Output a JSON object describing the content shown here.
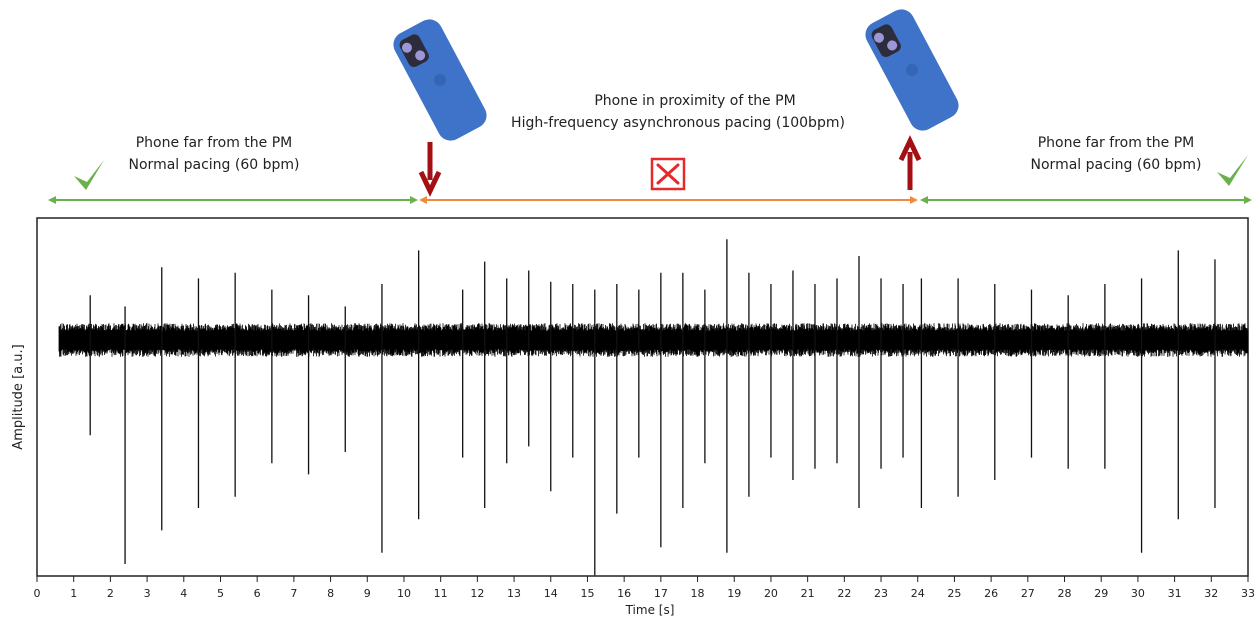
{
  "annotations": {
    "left": {
      "line1": "Phone far from the PM",
      "line2": "Normal pacing (60 bpm)"
    },
    "middle": {
      "line1": "Phone in proximity of the PM",
      "line2": "High-frequency asynchronous pacing  (100bpm)"
    },
    "right": {
      "line1": "Phone far from the PM",
      "line2": "Normal pacing (60 bpm)"
    }
  },
  "colors": {
    "normal_segment": "#6ab04c",
    "interference_segment": "#f08a3c",
    "arrow": "#a30f12",
    "cross": "#e8292b",
    "check": "#6ab04c",
    "phone": "#3f73c9",
    "signal": "#000000"
  },
  "icons": [
    "check-icon",
    "cross-icon",
    "phone-icon",
    "arrow-down-icon",
    "arrow-up-icon"
  ],
  "chart_data": {
    "type": "line",
    "xlabel": "Time [s]",
    "ylabel": "Amplitude [a.u.]",
    "xlim": [
      0,
      33
    ],
    "x_ticks": [
      0,
      1,
      2,
      3,
      4,
      5,
      6,
      7,
      8,
      9,
      10,
      11,
      12,
      13,
      14,
      15,
      16,
      17,
      18,
      19,
      20,
      21,
      22,
      23,
      24,
      25,
      26,
      27,
      28,
      29,
      30,
      31,
      32,
      33
    ],
    "signal_start": 0.6,
    "signal_end": 33,
    "noise_band": [
      -0.15,
      0.15
    ],
    "phase_boundaries": [
      10.4,
      24.0
    ],
    "spikes": [
      {
        "t": 1.45,
        "up": 0.4,
        "down": -0.85
      },
      {
        "t": 2.4,
        "up": 0.3,
        "down": -2.0
      },
      {
        "t": 3.4,
        "up": 0.65,
        "down": -1.7
      },
      {
        "t": 4.4,
        "up": 0.55,
        "down": -1.5
      },
      {
        "t": 5.4,
        "up": 0.6,
        "down": -1.4
      },
      {
        "t": 6.4,
        "up": 0.45,
        "down": -1.1
      },
      {
        "t": 7.4,
        "up": 0.4,
        "down": -1.2
      },
      {
        "t": 8.4,
        "up": 0.3,
        "down": -1.0
      },
      {
        "t": 9.4,
        "up": 0.5,
        "down": -1.9
      },
      {
        "t": 10.4,
        "up": 0.8,
        "down": -1.6
      },
      {
        "t": 11.6,
        "up": 0.45,
        "down": -1.05
      },
      {
        "t": 12.2,
        "up": 0.7,
        "down": -1.5
      },
      {
        "t": 12.8,
        "up": 0.55,
        "down": -1.1
      },
      {
        "t": 13.4,
        "up": 0.62,
        "down": -0.95
      },
      {
        "t": 14.0,
        "up": 0.52,
        "down": -1.35
      },
      {
        "t": 14.6,
        "up": 0.5,
        "down": -1.05
      },
      {
        "t": 15.2,
        "up": 0.45,
        "down": -2.1
      },
      {
        "t": 15.8,
        "up": 0.5,
        "down": -1.55
      },
      {
        "t": 16.4,
        "up": 0.45,
        "down": -1.05
      },
      {
        "t": 17.0,
        "up": 0.6,
        "down": -1.85
      },
      {
        "t": 17.6,
        "up": 0.6,
        "down": -1.5
      },
      {
        "t": 18.2,
        "up": 0.45,
        "down": -1.1
      },
      {
        "t": 18.8,
        "up": 0.9,
        "down": -1.9
      },
      {
        "t": 19.4,
        "up": 0.6,
        "down": -1.4
      },
      {
        "t": 20.0,
        "up": 0.5,
        "down": -1.05
      },
      {
        "t": 20.6,
        "up": 0.62,
        "down": -1.25
      },
      {
        "t": 21.2,
        "up": 0.5,
        "down": -1.15
      },
      {
        "t": 21.8,
        "up": 0.55,
        "down": -1.1
      },
      {
        "t": 22.4,
        "up": 0.75,
        "down": -1.5
      },
      {
        "t": 23.0,
        "up": 0.55,
        "down": -1.15
      },
      {
        "t": 23.6,
        "up": 0.5,
        "down": -1.05
      },
      {
        "t": 24.1,
        "up": 0.55,
        "down": -1.5
      },
      {
        "t": 25.1,
        "up": 0.55,
        "down": -1.4
      },
      {
        "t": 26.1,
        "up": 0.5,
        "down": -1.25
      },
      {
        "t": 27.1,
        "up": 0.45,
        "down": -1.05
      },
      {
        "t": 28.1,
        "up": 0.4,
        "down": -1.15
      },
      {
        "t": 29.1,
        "up": 0.5,
        "down": -1.15
      },
      {
        "t": 30.1,
        "up": 0.55,
        "down": -1.9
      },
      {
        "t": 31.1,
        "up": 0.8,
        "down": -1.6
      },
      {
        "t": 32.1,
        "up": 0.72,
        "down": -1.5
      }
    ]
  }
}
